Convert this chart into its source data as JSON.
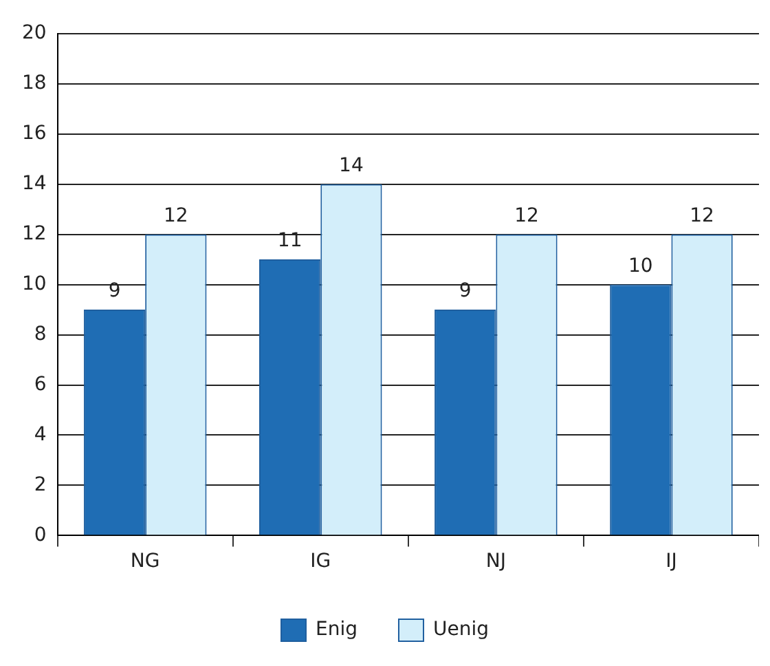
{
  "chart_data": {
    "type": "bar",
    "categories": [
      "NG",
      "IG",
      "NJ",
      "IJ"
    ],
    "series": [
      {
        "name": "Enig",
        "color": "#1f6db4",
        "values": [
          9,
          11,
          9,
          10
        ]
      },
      {
        "name": "Uenig",
        "color": "#d3eefa",
        "values": [
          12,
          14,
          12,
          12
        ]
      }
    ],
    "ylim": [
      0,
      20
    ],
    "yticks": [
      0,
      2,
      4,
      6,
      8,
      10,
      12,
      14,
      16,
      18,
      20
    ],
    "grid": "y",
    "legend": "bottom",
    "data_labels": true
  }
}
